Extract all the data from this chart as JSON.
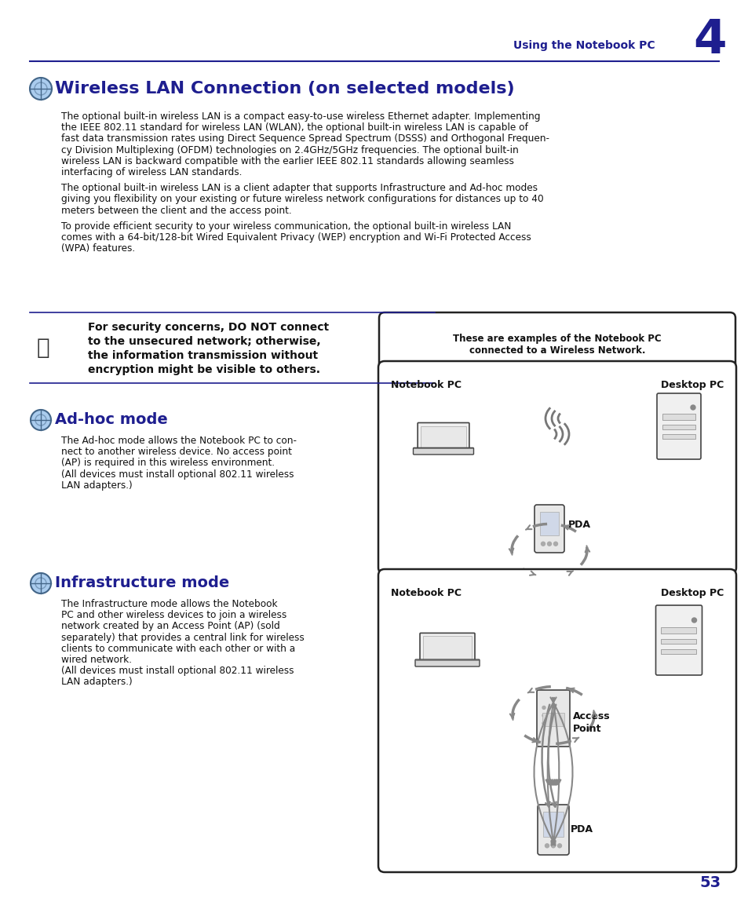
{
  "bg_color": "#ffffff",
  "dark_blue": "#1e1e8f",
  "text_color": "#111111",
  "gray": "#888888",
  "page_num": "53",
  "chapter_title": "Using the Notebook PC",
  "chapter_num": "4",
  "section_title": "Wireless LAN Connection (on selected models)",
  "para1_lines": [
    "The optional built-in wireless LAN is a compact easy-to-use wireless Ethernet adapter. Implementing",
    "the IEEE 802.11 standard for wireless LAN (WLAN), the optional built-in wireless LAN is capable of",
    "fast data transmission rates using Direct Sequence Spread Spectrum (DSSS) and Orthogonal Frequen-",
    "cy Division Multiplexing (OFDM) technologies on 2.4GHz/5GHz frequencies. The optional built-in",
    "wireless LAN is backward compatible with the earlier IEEE 802.11 standards allowing seamless",
    "interfacing of wireless LAN standards."
  ],
  "para2_lines": [
    "The optional built-in wireless LAN is a client adapter that supports Infrastructure and Ad-hoc modes",
    "giving you flexibility on your existing or future wireless network configurations for distances up to 40",
    "meters between the client and the access point."
  ],
  "para3_lines": [
    "To provide efficient security to your wireless communication, the optional built-in wireless LAN",
    "comes with a 64-bit/128-bit Wired Equivalent Privacy (WEP) encryption and Wi-Fi Protected Access",
    "(WPA) features."
  ],
  "warning_lines": [
    "For security concerns, DO NOT connect",
    "to the unsecured network; otherwise,",
    "the information transmission without",
    "encryption might be visible to others."
  ],
  "diag_caption1": "These are examples of the Notebook PC",
  "diag_caption2": "connected to a Wireless Network.",
  "adhoc_title": "Ad-hoc mode",
  "adhoc_lines": [
    "The Ad-hoc mode allows the Notebook PC to con-",
    "nect to another wireless device. No access point",
    "(AP) is required in this wireless environment.",
    "(All devices must install optional 802.11 wireless",
    "LAN adapters.)"
  ],
  "infra_title": "Infrastructure mode",
  "infra_lines": [
    "The Infrastructure mode allows the Notebook",
    "PC and other wireless devices to join a wireless",
    "network created by an Access Point (AP) (sold",
    "separately) that provides a central link for wireless",
    "clients to communicate with each other or with a",
    "wired network.",
    "(All devices must install optional 802.11 wireless",
    "LAN adapters.)"
  ]
}
